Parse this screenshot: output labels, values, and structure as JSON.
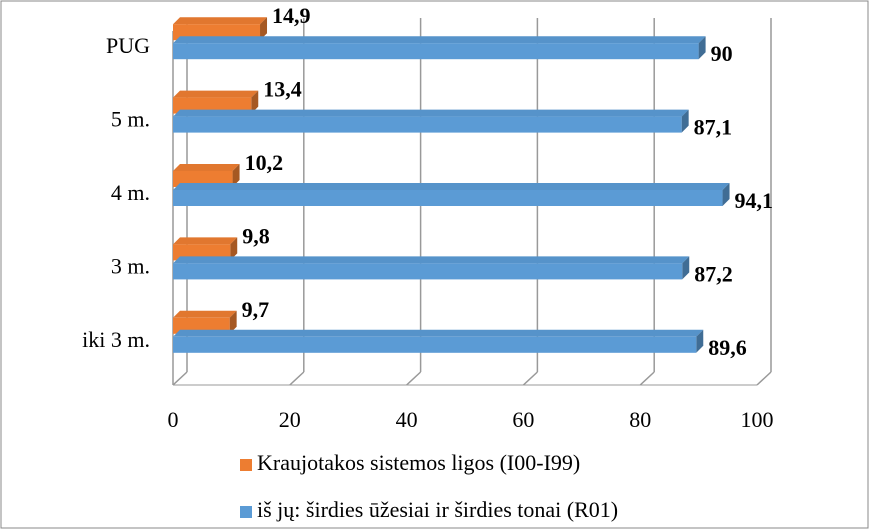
{
  "chart_data": {
    "type": "bar",
    "orientation": "horizontal",
    "categories": [
      "iki 3 m.",
      "3 m.",
      "4 m.",
      "5 m.",
      "PUG"
    ],
    "series": [
      {
        "name": "Kraujotakos sistemos ligos (I00-I99)",
        "color": "#ed7d31",
        "values": [
          9.7,
          9.8,
          10.2,
          13.4,
          14.9
        ],
        "value_labels": [
          "9,7",
          "9,8",
          "10,2",
          "13,4",
          "14,9"
        ]
      },
      {
        "name": "iš jų: širdies ūžesiai ir širdies tonai (R01)",
        "color": "#5b9bd5",
        "values": [
          89.6,
          87.2,
          94.1,
          87.1,
          90
        ],
        "value_labels": [
          "89,6",
          "87,2",
          "94,1",
          "87,1",
          "90"
        ]
      }
    ],
    "xlim": [
      0,
      100
    ],
    "xticks": [
      0,
      20,
      40,
      60,
      80,
      100
    ],
    "grid": true
  }
}
